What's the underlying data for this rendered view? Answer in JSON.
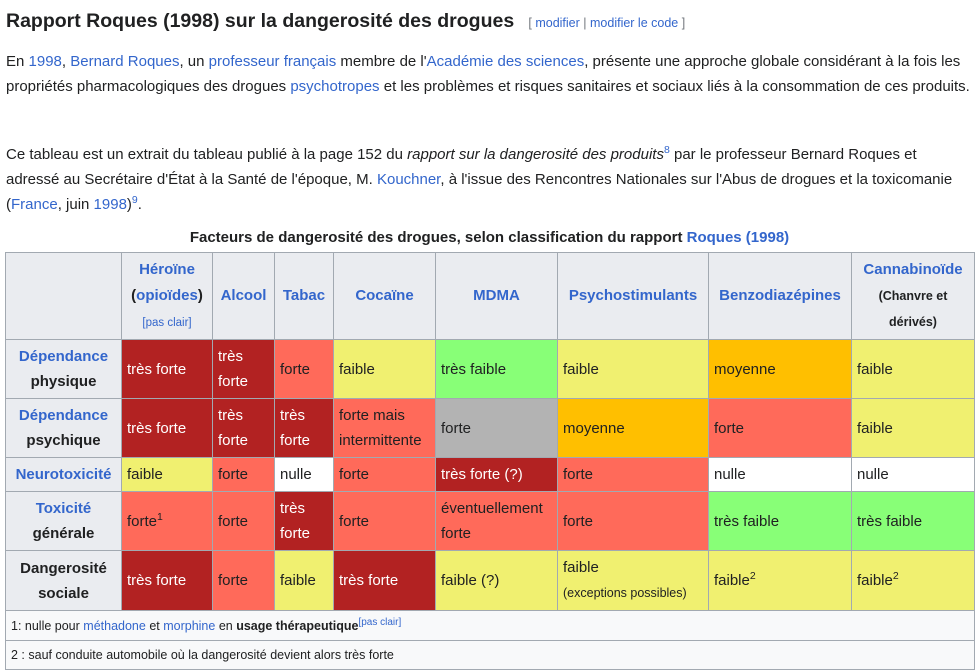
{
  "heading": {
    "title": "Rapport Roques (1998) sur la dangerosité des drogues",
    "edit_open": "[ ",
    "edit_link": "modifier",
    "edit_sep": " | ",
    "edit_code_link": "modifier le code",
    "edit_close": " ]"
  },
  "para1": {
    "t1": "En ",
    "l_year": "1998",
    "t2": ", ",
    "l_person": "Bernard Roques",
    "t3": ", un ",
    "l_prof": "professeur français",
    "t4": " membre de l'",
    "l_acad": "Académie des sciences",
    "t5": ", présente une approche globale considérant à la fois les propriétés pharmacologiques des drogues ",
    "l_psycho": "psychotropes",
    "t6": " et les problèmes et risques sanitaires et sociaux liés à la consommation de ces produits."
  },
  "para2": {
    "t1": "Ce tableau est un extrait du tableau publié à la page 152 du ",
    "italic": "rapport sur la dangerosité des produits",
    "ref1": "8",
    "t2": " par le professeur Bernard Roques et adressé au Secrétaire d'État à la Santé de l'époque, M. ",
    "l_kouchner": "Kouchner",
    "t3": ", à l'issue des Rencontres Nationales sur l'Abus de drogues et la toxicomanie (",
    "l_france": "France",
    "t4": ", juin ",
    "l_year": "1998",
    "t5": ")",
    "ref2": "9",
    "t6": "."
  },
  "caption": {
    "text": "Facteurs de dangerosité des drogues, selon classification du rapport ",
    "link": "Roques (1998)"
  },
  "table": {
    "columns": {
      "heroine": "Héroïne",
      "heroine_open": "(",
      "heroine_opioides": "opioïdes",
      "heroine_close": ")",
      "heroine_note": "[pas clair]",
      "alcool": "Alcool",
      "tabac": "Tabac",
      "cocaine": "Cocaïne",
      "mdma": "MDMA",
      "psychostimulants": "Psychostimulants",
      "benzo": "Benzodiazépines",
      "cannabinoide": "Cannabinoïde",
      "cannabinoide_note": "(Chanvre et dérivés)"
    },
    "rows": [
      {
        "label_link": "Dépendance",
        "label_rest": "physique",
        "cells": [
          {
            "v": "très forte",
            "lvl": "vf"
          },
          {
            "v": "très forte",
            "lvl": "vf"
          },
          {
            "v": "forte",
            "lvl": "f"
          },
          {
            "v": "faible",
            "lvl": "fa"
          },
          {
            "v": "très faible",
            "lvl": "tfa"
          },
          {
            "v": "faible",
            "lvl": "fa"
          },
          {
            "v": "moyenne",
            "lvl": "m"
          },
          {
            "v": "faible",
            "lvl": "fa"
          }
        ]
      },
      {
        "label_link": "Dépendance",
        "label_rest": "psychique",
        "cells": [
          {
            "v": "très forte",
            "lvl": "vf"
          },
          {
            "v": "très forte",
            "lvl": "vf"
          },
          {
            "v": "très forte",
            "lvl": "vf"
          },
          {
            "v": "forte mais intermittente",
            "lvl": "f"
          },
          {
            "v": "forte",
            "lvl": "g"
          },
          {
            "v": "moyenne",
            "lvl": "m"
          },
          {
            "v": "forte",
            "lvl": "f"
          },
          {
            "v": "faible",
            "lvl": "fa"
          }
        ]
      },
      {
        "label_link": "Neurotoxicité",
        "label_rest": "",
        "cells": [
          {
            "v": "faible",
            "lvl": "fa"
          },
          {
            "v": "forte",
            "lvl": "f"
          },
          {
            "v": "nulle",
            "lvl": "n"
          },
          {
            "v": "forte",
            "lvl": "f"
          },
          {
            "v": "très forte (?)",
            "lvl": "vf"
          },
          {
            "v": "forte",
            "lvl": "f"
          },
          {
            "v": "nulle",
            "lvl": "n"
          },
          {
            "v": "nulle",
            "lvl": "n"
          }
        ]
      },
      {
        "label_link": "Toxicité",
        "label_rest": "générale",
        "cells": [
          {
            "v": "forte",
            "lvl": "f",
            "sup": "1"
          },
          {
            "v": "forte",
            "lvl": "f"
          },
          {
            "v": "très forte",
            "lvl": "vf"
          },
          {
            "v": "forte",
            "lvl": "f"
          },
          {
            "v": "éventuellement forte",
            "lvl": "f"
          },
          {
            "v": "forte",
            "lvl": "f"
          },
          {
            "v": "très faible",
            "lvl": "tfa"
          },
          {
            "v": "très faible",
            "lvl": "tfa"
          }
        ]
      },
      {
        "label_link": "",
        "label_rest": "Dangerosité sociale",
        "cells": [
          {
            "v": "très forte",
            "lvl": "vf"
          },
          {
            "v": "forte",
            "lvl": "f"
          },
          {
            "v": "faible",
            "lvl": "fa"
          },
          {
            "v": "très forte",
            "lvl": "vf"
          },
          {
            "v": "faible (?)",
            "lvl": "fa"
          },
          {
            "v": "faible",
            "lvl": "fa",
            "sub": "(exceptions possibles)"
          },
          {
            "v": "faible",
            "lvl": "fa",
            "sup": "2"
          },
          {
            "v": "faible",
            "lvl": "fa",
            "sup": "2"
          }
        ]
      }
    ],
    "footnotes": {
      "n1_a": "1: nulle pour ",
      "n1_meth": "méthadone",
      "n1_b": " et ",
      "n1_morph": "morphine",
      "n1_c": " en ",
      "n1_bold": "usage thérapeutique",
      "n1_note": "[pas clair]",
      "n2": "2 : sauf conduite automobile où la dangerosité devient alors très forte"
    }
  },
  "colors": {
    "link": "#3366cc",
    "very_strong": "#b22222",
    "strong": "#ff6a5a",
    "weak": "#f0f070",
    "very_weak": "#88ff77",
    "medium": "#ffbf00",
    "grey": "#b3b3b3",
    "none": "#ffffff",
    "header_bg": "#eaecf0"
  }
}
